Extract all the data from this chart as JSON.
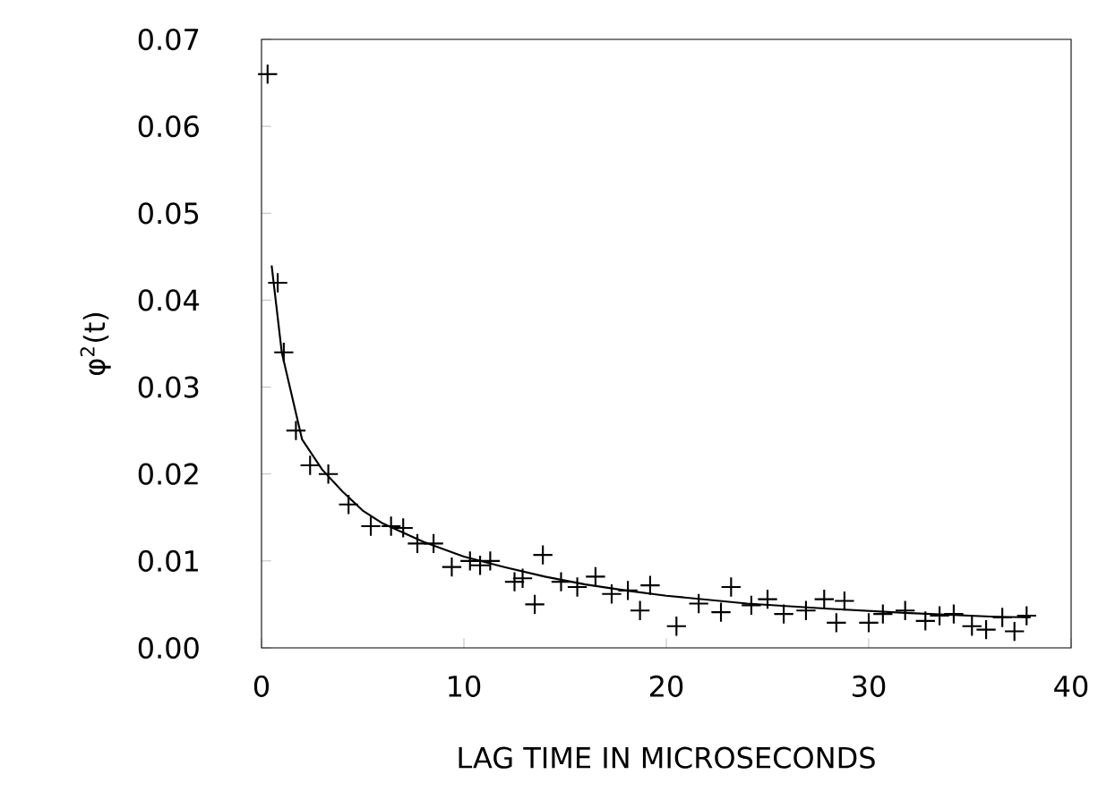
{
  "chart_data": {
    "type": "scatter",
    "xlabel": "LAG TIME IN MICROSECONDS",
    "ylabel": "φ$^{2}$(t)",
    "xlim": [
      0,
      40
    ],
    "xticks": [
      0,
      10,
      20,
      30,
      40
    ],
    "ylim": [
      0,
      0.07
    ],
    "yticks": [
      {
        "value": 0,
        "label": "0.00"
      },
      {
        "value": 0.01,
        "label": "0.01"
      },
      {
        "value": 0.02,
        "label": "0.02"
      },
      {
        "value": 0.03,
        "label": "0.03"
      },
      {
        "value": 0.04,
        "label": "0.04"
      },
      {
        "value": 0.05,
        "label": "0.05"
      },
      {
        "value": 0.06,
        "label": "0.06"
      },
      {
        "value": 0.07,
        "label": "0.07"
      }
    ],
    "grid": false,
    "series": [
      {
        "color": "#000000",
        "marker": "cross",
        "x": [
          0.3,
          0.8,
          1.1,
          1.7,
          2.4,
          3.3,
          4.3,
          5.4,
          6.4,
          7.0,
          7.7,
          8.5,
          9.4,
          10.3,
          10.8,
          11.3,
          12.5,
          12.9,
          13.5,
          13.9,
          14.8,
          15.6,
          16.5,
          17.3,
          18.1,
          18.7,
          19.2,
          20.5,
          21.6,
          22.7,
          23.2,
          24.2,
          25.0,
          25.8,
          26.9,
          27.8,
          28.4,
          28.8,
          30.0,
          30.7,
          31.8,
          32.8,
          33.5,
          34.2,
          35.1,
          35.8,
          36.6,
          37.2,
          37.8
        ],
        "values": [
          0.066,
          0.042,
          0.034,
          0.025,
          0.021,
          0.02,
          0.0165,
          0.014,
          0.014,
          0.0138,
          0.012,
          0.012,
          0.0093,
          0.01,
          0.0095,
          0.01,
          0.0076,
          0.008,
          0.005,
          0.0107,
          0.0076,
          0.007,
          0.0082,
          0.0062,
          0.0066,
          0.0043,
          0.0072,
          0.0025,
          0.0051,
          0.0041,
          0.007,
          0.0049,
          0.0056,
          0.0039,
          0.0043,
          0.0056,
          0.0029,
          0.0054,
          0.0029,
          0.0039,
          0.0043,
          0.0031,
          0.0037,
          0.0039,
          0.0025,
          0.0021,
          0.0035,
          0.0019,
          0.0037
        ]
      },
      {
        "type": "line",
        "color": "#000000",
        "marker": "none",
        "line_style": "solid",
        "x": [
          0.5,
          1,
          2,
          3,
          4,
          5,
          6,
          8,
          10,
          12,
          14,
          16,
          18,
          20,
          24,
          28,
          32,
          36,
          38
        ],
        "values": [
          0.044,
          0.034,
          0.024,
          0.0205,
          0.018,
          0.0158,
          0.0143,
          0.0122,
          0.0105,
          0.0093,
          0.0082,
          0.0073,
          0.0066,
          0.006,
          0.0051,
          0.0045,
          0.004,
          0.0036,
          0.0035
        ]
      }
    ]
  }
}
